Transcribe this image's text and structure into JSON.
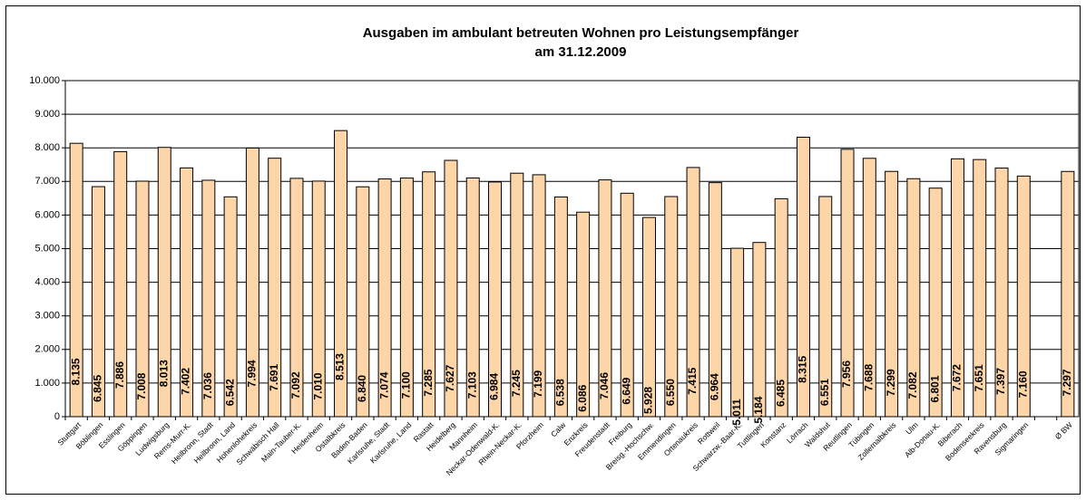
{
  "chart_data": {
    "type": "bar",
    "title": "Ausgaben im ambulant betreuten Wohnen pro Leistungsempfänger",
    "subtitle": "am 31.12.2009",
    "categories": [
      "Stuttgart",
      "Böblingen",
      "Esslingen",
      "Göppingen",
      "Ludwigsburg",
      "Rems-Murr-K.",
      "Heilbronn, Stadt",
      "Heilbronn, Land",
      "Hohenlohekreis",
      "Schwäbisch Hall",
      "Main-Tauber-K.",
      "Heidenheim",
      "Ostalbkreis",
      "Baden-Baden",
      "Karlsruhe, Stadt",
      "Karlsruhe, Land",
      "Rastatt",
      "Heidelberg",
      "Mannheim",
      "Neckar-Odenwald-K.",
      "Rhein-Neckar-K.",
      "Pforzheim",
      "Calw",
      "Enzkreis",
      "Freudenstadt",
      "Freiburg",
      "Breisg.-Hochschw.",
      "Emmendingen",
      "Ortenaukreis",
      "Rottweil",
      "Schwarzw.-Baar-K.",
      "Tuttlingen",
      "Konstanz",
      "Lörrach",
      "Waldshut",
      "Reutlingen",
      "Tübingen",
      "Zollernalbkreis",
      "Ulm",
      "Alb-Donau-K.",
      "Biberach",
      "Bodenseekreis",
      "Ravensburg",
      "Sigmaringen",
      null,
      "Ø BW"
    ],
    "values": [
      8135,
      6845,
      7886,
      7008,
      8013,
      7402,
      7036,
      6542,
      7994,
      7691,
      7092,
      7010,
      8513,
      6840,
      7074,
      7100,
      7285,
      7627,
      7103,
      6984,
      7245,
      7199,
      6538,
      6086,
      7046,
      6649,
      5928,
      6550,
      7415,
      6964,
      5011,
      5184,
      6485,
      8315,
      6551,
      7956,
      7688,
      7299,
      7082,
      6801,
      7672,
      7651,
      7397,
      7160,
      null,
      7297
    ],
    "value_labels": [
      "8.135",
      "6.845",
      "7.886",
      "7.008",
      "8.013",
      "7.402",
      "7.036",
      "6.542",
      "7.994",
      "7.691",
      "7.092",
      "7.010",
      "8.513",
      "6.840",
      "7.074",
      "7.100",
      "7.285",
      "7.627",
      "7.103",
      "6.984",
      "7.245",
      "7.199",
      "6.538",
      "6.086",
      "7.046",
      "6.649",
      "5.928",
      "6.550",
      "7.415",
      "6.964",
      "5.011",
      "5.184",
      "6.485",
      "8.315",
      "6.551",
      "7.956",
      "7.688",
      "7.299",
      "7.082",
      "6.801",
      "7.672",
      "7.651",
      "7.397",
      "7.160",
      null,
      "7.297"
    ],
    "color": "#fcd5a8",
    "ylim": [
      0,
      10000
    ],
    "yticks": [
      0,
      {
        "value": 1000,
        "label": "1.000"
      },
      {
        "value": 2000,
        "label": "2.000"
      },
      {
        "value": 3000,
        "label": "3.000"
      },
      {
        "value": 4000,
        "label": "4.000"
      },
      {
        "value": 5000,
        "label": "5.000"
      },
      {
        "value": 6000,
        "label": "6.000"
      },
      {
        "value": 7000,
        "label": "7.000"
      },
      {
        "value": 8000,
        "label": "8.000"
      },
      {
        "value": 9000,
        "label": "9.000"
      },
      {
        "value": 10000,
        "label": "10.000"
      }
    ],
    "grid": true
  }
}
